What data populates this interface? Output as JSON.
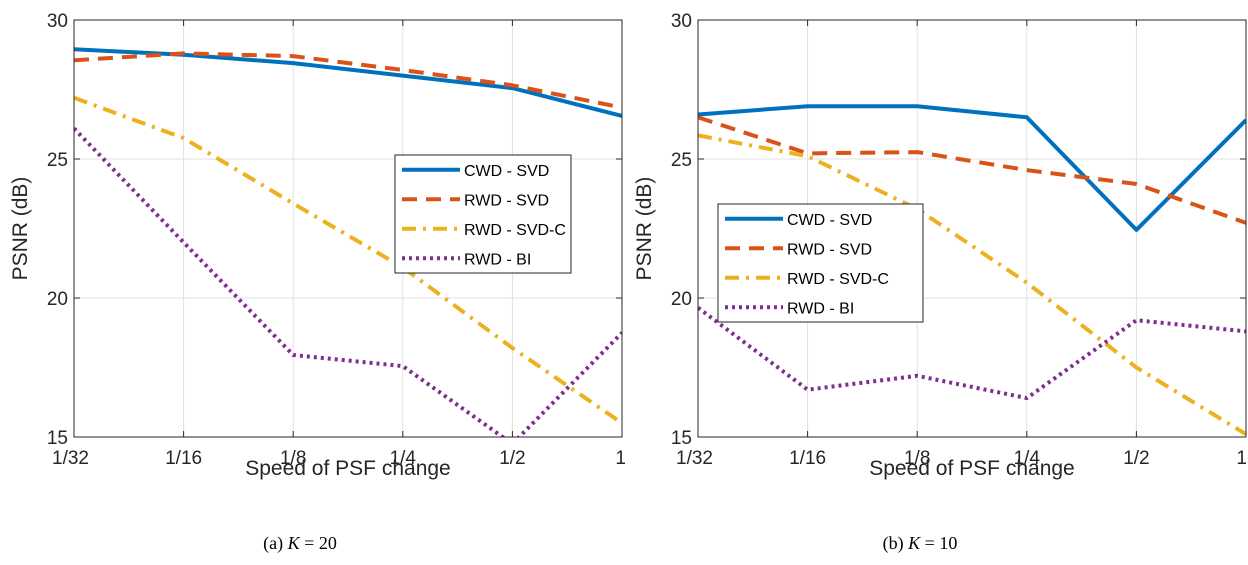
{
  "chart_data": [
    {
      "type": "line",
      "caption_prefix": "(a)",
      "caption_var": "K",
      "caption_value": "= 20",
      "xlabel": "Speed of PSF change",
      "ylabel": "PSNR (dB)",
      "categories": [
        "1/32",
        "1/16",
        "1/8",
        "1/4",
        "1/2",
        "1"
      ],
      "ylim": [
        15,
        30
      ],
      "yticks": [
        "15",
        "20",
        "25",
        "30"
      ],
      "grid": true,
      "legend_position": "center-right",
      "series": [
        {
          "name": "CWD - SVD",
          "values": [
            28.95,
            28.75,
            28.45,
            28.0,
            27.55,
            26.55
          ],
          "color": "#0072BD",
          "dash": "solid"
        },
        {
          "name": "RWD - SVD",
          "values": [
            28.55,
            28.8,
            28.7,
            28.2,
            27.65,
            26.85
          ],
          "color": "#D95319",
          "dash": "dashed"
        },
        {
          "name": "RWD - SVD-C",
          "values": [
            27.2,
            25.75,
            23.4,
            21.1,
            18.2,
            15.5
          ],
          "color": "#EDB120",
          "dash": "dashdot"
        },
        {
          "name": "RWD - BI",
          "values": [
            26.1,
            22.0,
            17.95,
            17.55,
            14.75,
            18.75
          ],
          "color": "#7E2F8E",
          "dash": "dotted"
        }
      ]
    },
    {
      "type": "line",
      "caption_prefix": "(b)",
      "caption_var": "K",
      "caption_value": "= 10",
      "xlabel": "Speed of PSF change",
      "ylabel": "PSNR (dB)",
      "categories": [
        "1/32",
        "1/16",
        "1/8",
        "1/4",
        "1/2",
        "1"
      ],
      "ylim": [
        15,
        30
      ],
      "yticks": [
        "15",
        "20",
        "25",
        "30"
      ],
      "grid": true,
      "legend_position": "center-left",
      "series": [
        {
          "name": "CWD - SVD",
          "values": [
            26.6,
            26.9,
            26.9,
            26.5,
            22.45,
            26.4
          ],
          "color": "#0072BD",
          "dash": "solid"
        },
        {
          "name": "RWD - SVD",
          "values": [
            26.5,
            25.2,
            25.25,
            24.6,
            24.1,
            22.7
          ],
          "color": "#D95319",
          "dash": "dashed"
        },
        {
          "name": "RWD - SVD-C",
          "values": [
            25.85,
            25.1,
            23.2,
            20.55,
            17.5,
            15.1
          ],
          "color": "#EDB120",
          "dash": "dashdot"
        },
        {
          "name": "RWD - BI",
          "values": [
            19.65,
            16.7,
            17.2,
            16.4,
            19.2,
            18.8
          ],
          "color": "#7E2F8E",
          "dash": "dotted"
        }
      ]
    }
  ]
}
